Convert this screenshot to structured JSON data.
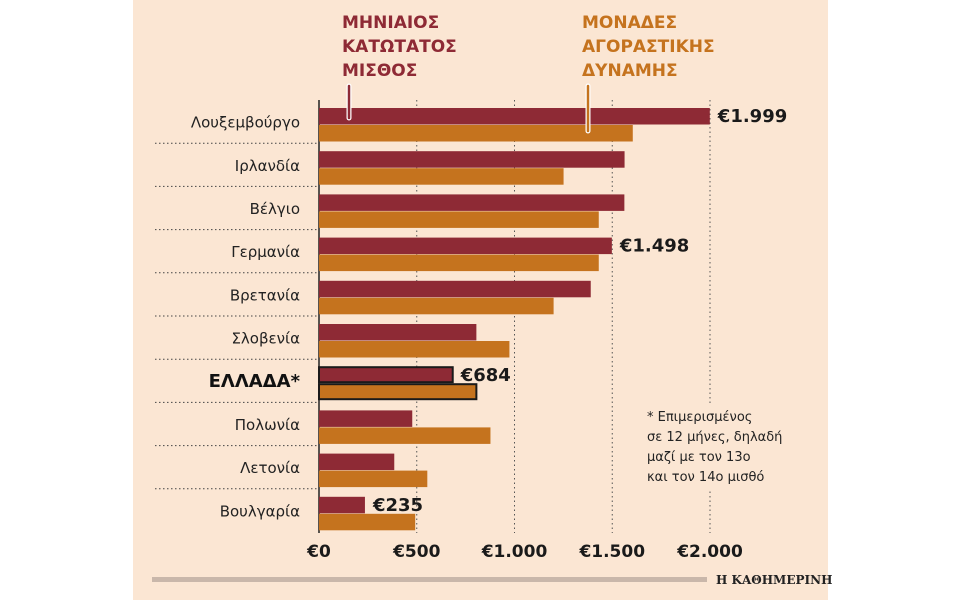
{
  "chart_data": {
    "type": "bar",
    "orientation": "horizontal",
    "categories": [
      "Λουξεμβούργο",
      "Ιρλανδία",
      "Βέλγιο",
      "Γερμανία",
      "Βρετανία",
      "Σλοβενία",
      "ΕΛΛΑΔΑ*",
      "Πολωνία",
      "Λετονία",
      "Βουλγαρία"
    ],
    "highlight_category": "ΕΛΛΑΔΑ*",
    "series": [
      {
        "name": [
          "ΜΗΝΙΑΙΟΣ",
          "ΚΑΤΩΤΑΤΟΣ",
          "ΜΙΣΘΟΣ"
        ],
        "color": "#8e2a35",
        "values": [
          1999,
          1563,
          1562,
          1498,
          1390,
          805,
          684,
          477,
          385,
          235
        ]
      },
      {
        "name": [
          "ΜΟΝΑΔΕΣ",
          "ΑΓΟΡΑΣΤΙΚΗΣ",
          "ΔΥΝΑΜΗΣ"
        ],
        "color": "#c5731e",
        "values": [
          1605,
          1251,
          1431,
          1431,
          1200,
          974,
          805,
          877,
          554,
          492
        ]
      }
    ],
    "data_labels": [
      {
        "category_index": 0,
        "text": "€1.999"
      },
      {
        "category_index": 3,
        "text": "€1.498"
      },
      {
        "category_index": 6,
        "text": "€684"
      },
      {
        "category_index": 9,
        "text": "€235"
      }
    ],
    "x_ticks": [
      0,
      500,
      1000,
      1500,
      2000
    ],
    "x_tick_labels": [
      "€0",
      "€500",
      "€1.000",
      "€1.500",
      "€2.000"
    ],
    "xlim": [
      0,
      2000
    ],
    "grid": "vertical dotted",
    "footnote": [
      "* Επιμερισμένος",
      "σε 12 μήνες, δηλαδή",
      "μαζί με τον 13ο",
      "και τον 14ο μισθό"
    ],
    "source_logo": "Η ΚΑΘΗΜΕΡΙΝΗ",
    "background": "#fbe6d3"
  }
}
